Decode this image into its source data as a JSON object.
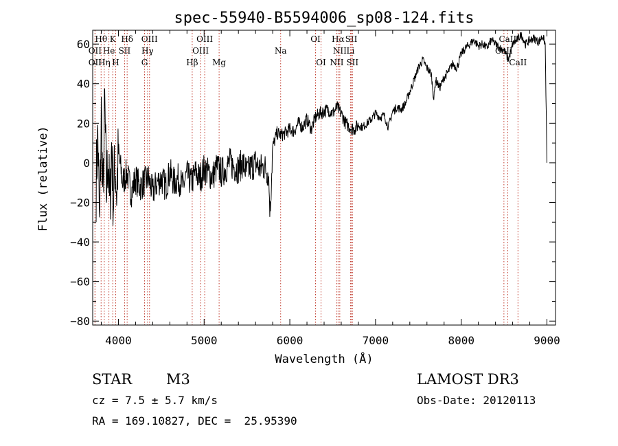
{
  "chart_data": {
    "type": "line",
    "title": "spec-55940-B5594006_sp08-124.fits",
    "xlabel": "Wavelength (Å)",
    "ylabel": "Flux (relative)",
    "xlim": [
      3700,
      9100
    ],
    "ylim": [
      -82,
      67
    ],
    "x_ticks": [
      4000,
      5000,
      6000,
      7000,
      8000,
      9000
    ],
    "y_ticks": [
      -80,
      -60,
      -40,
      -20,
      0,
      20,
      40,
      60
    ],
    "grid": false,
    "series": [
      {
        "name": "flux",
        "x": [
          3740,
          3760,
          3780,
          3800,
          3820,
          3840,
          3860,
          3880,
          3900,
          3920,
          3940,
          3960,
          3980,
          4000,
          4050,
          4100,
          4150,
          4200,
          4250,
          4300,
          4350,
          4400,
          4450,
          4500,
          4550,
          4600,
          4650,
          4700,
          4750,
          4800,
          4850,
          4900,
          4950,
          5000,
          5050,
          5100,
          5150,
          5200,
          5250,
          5300,
          5350,
          5400,
          5450,
          5500,
          5550,
          5600,
          5650,
          5700,
          5750,
          5770,
          5800,
          5850,
          5900,
          5950,
          6000,
          6050,
          6100,
          6150,
          6200,
          6250,
          6300,
          6350,
          6400,
          6450,
          6500,
          6550,
          6600,
          6650,
          6700,
          6750,
          6800,
          6850,
          6900,
          6950,
          7000,
          7050,
          7100,
          7150,
          7200,
          7250,
          7300,
          7350,
          7400,
          7450,
          7500,
          7550,
          7600,
          7650,
          7680,
          7700,
          7750,
          7800,
          7850,
          7900,
          7950,
          8000,
          8050,
          8100,
          8150,
          8200,
          8250,
          8300,
          8350,
          8400,
          8450,
          8500,
          8550,
          8600,
          8650,
          8700,
          8750,
          8800,
          8850,
          8900,
          8950,
          8980,
          9000
        ],
        "y": [
          -10,
          15,
          -35,
          25,
          -20,
          30,
          -15,
          5,
          -25,
          10,
          -20,
          0,
          -15,
          5,
          -10,
          -5,
          -15,
          -8,
          -12,
          -10,
          -8,
          -15,
          -10,
          -8,
          -12,
          -5,
          -10,
          -8,
          -12,
          -6,
          -10,
          -5,
          -8,
          -3,
          -5,
          -7,
          -2,
          -5,
          -3,
          0,
          -2,
          -3,
          0,
          -5,
          -2,
          0,
          -3,
          -2,
          -5,
          -25,
          8,
          15,
          14,
          15,
          17,
          16,
          20,
          18,
          22,
          17,
          23,
          25,
          26,
          27,
          25,
          28,
          25,
          20,
          18,
          17,
          19,
          18,
          20,
          22,
          25,
          23,
          24,
          18,
          26,
          28,
          27,
          30,
          36,
          42,
          48,
          52,
          48,
          45,
          32,
          42,
          38,
          43,
          46,
          50,
          48,
          55,
          58,
          60,
          62,
          59,
          60,
          58,
          62,
          60,
          58,
          57,
          52,
          60,
          62,
          65,
          60,
          62,
          63,
          61,
          64,
          60,
          0
        ]
      }
    ],
    "spectral_lines": [
      {
        "label": "Hθ",
        "x": 3798,
        "row": 1
      },
      {
        "label": "K",
        "x": 3934,
        "row": 1
      },
      {
        "label": "Hδ",
        "x": 4102,
        "row": 1
      },
      {
        "label": "OIII",
        "x": 4363,
        "row": 1
      },
      {
        "label": "OIII",
        "x": 5007,
        "row": 1
      },
      {
        "label": "OI",
        "x": 6300,
        "row": 1
      },
      {
        "label": "Hα",
        "x": 6563,
        "row": 1
      },
      {
        "label": "SII",
        "x": 6717,
        "row": 1
      },
      {
        "label": "CaII",
        "x": 8542,
        "row": 1
      },
      {
        "label": "OII",
        "x": 3727,
        "row": 2
      },
      {
        "label": "He",
        "x": 3889,
        "row": 2
      },
      {
        "label": "SII",
        "x": 4072,
        "row": 2
      },
      {
        "label": "Hγ",
        "x": 4340,
        "row": 2
      },
      {
        "label": "OIII",
        "x": 4959,
        "row": 2
      },
      {
        "label": "Na",
        "x": 5893,
        "row": 2
      },
      {
        "label": "NII",
        "x": 6583,
        "row": 2
      },
      {
        "label": "Li",
        "x": 6708,
        "row": 2
      },
      {
        "label": "CaII",
        "x": 8498,
        "row": 2
      },
      {
        "label": "OII",
        "x": 3727,
        "row": 3
      },
      {
        "label": "Hη",
        "x": 3835,
        "row": 3
      },
      {
        "label": "H",
        "x": 3968,
        "row": 3
      },
      {
        "label": "G",
        "x": 4305,
        "row": 3
      },
      {
        "label": "Hβ",
        "x": 4861,
        "row": 3
      },
      {
        "label": "Mg",
        "x": 5175,
        "row": 3
      },
      {
        "label": "OI",
        "x": 6364,
        "row": 3
      },
      {
        "label": "NII",
        "x": 6548,
        "row": 3
      },
      {
        "label": "SII",
        "x": 6731,
        "row": 3
      },
      {
        "label": "CaII",
        "x": 8662,
        "row": 3
      }
    ]
  },
  "info": {
    "class_label": "STAR",
    "subclass": "M3",
    "survey": "LAMOST DR3",
    "cz": "cz = 7.5 ± 5.7 km/s",
    "obs_date": "Obs-Date: 20120113",
    "radec": "RA = 169.10827, DEC =  25.95390"
  }
}
